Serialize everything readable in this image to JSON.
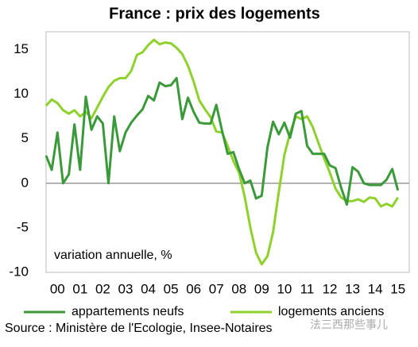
{
  "chart_data": {
    "type": "line",
    "title": "France : prix des logements",
    "annotation": "variation annuelle, %",
    "source": "Source : Ministère de l'Ecologie, Insee-Notaires",
    "watermark": "法三西那些事儿",
    "x": [
      0,
      0.25,
      0.5,
      0.75,
      1,
      1.25,
      1.5,
      1.75,
      2,
      2.25,
      2.5,
      2.75,
      3,
      3.25,
      3.5,
      3.75,
      4,
      4.25,
      4.5,
      4.75,
      5,
      5.25,
      5.5,
      5.75,
      6,
      6.25,
      6.5,
      6.75,
      7,
      7.25,
      7.5,
      7.75,
      8,
      8.25,
      8.5,
      8.75,
      9,
      9.25,
      9.5,
      9.75,
      10,
      10.25,
      10.5,
      10.75,
      11,
      11.25,
      11.5,
      11.75,
      12,
      12.25,
      12.5,
      12.75,
      13,
      13.25,
      13.5,
      13.75,
      14,
      14.25,
      14.5,
      14.75,
      15,
      15.25,
      15.5
    ],
    "series": [
      {
        "name": "appartements neufs",
        "color": "#3a9a3a",
        "values": [
          3.1,
          1.5,
          5.7,
          0,
          1.0,
          6.6,
          1.5,
          9.7,
          6.0,
          7.5,
          6.7,
          0,
          7.5,
          3.6,
          5.7,
          6.8,
          7.6,
          8.3,
          9.8,
          9.3,
          11.3,
          10.9,
          11.0,
          11.8,
          7.2,
          9.6,
          8.0,
          6.8,
          6.7,
          6.7,
          8.8,
          5.9,
          3.3,
          3.5,
          1.6,
          0,
          0.3,
          -1.7,
          -1.4,
          4.0,
          6.9,
          5.5,
          6.8,
          5.1,
          7.8,
          8.1,
          4.2,
          3.3,
          3.3,
          3.3,
          2.0,
          1.7,
          -0.5,
          -2.4,
          1.8,
          1.3,
          0,
          -0.2,
          -0.2,
          -0.2,
          0.4,
          1.6,
          -0.8
        ]
      },
      {
        "name": "logements anciens",
        "color": "#8fd12c",
        "values": [
          8.7,
          9.4,
          9.0,
          8.2,
          7.8,
          8.2,
          7.5,
          8.0,
          7.3,
          8.5,
          9.7,
          10.8,
          11.5,
          11.8,
          11.8,
          12.6,
          14.4,
          14.7,
          15.5,
          16.1,
          15.6,
          15.8,
          15.7,
          15.2,
          14.5,
          13.2,
          11.4,
          9.3,
          8.3,
          7.4,
          5.8,
          5.7,
          4.2,
          2.5,
          1.2,
          -1.5,
          -5.0,
          -7.8,
          -9.1,
          -8.2,
          -5.5,
          -1.0,
          3.2,
          5.6,
          7.5,
          7.2,
          7.5,
          6.3,
          4.5,
          2.8,
          1.2,
          -0.6,
          -1.6,
          -2.0,
          -2.0,
          -1.8,
          -2.1,
          -1.6,
          -1.7,
          -2.6,
          -2.3,
          -2.6,
          -1.6
        ]
      }
    ],
    "xlim": [
      0,
      16
    ],
    "xticks": [
      {
        "value": 0.5,
        "label": "00"
      },
      {
        "value": 1.5,
        "label": "01"
      },
      {
        "value": 2.5,
        "label": "02"
      },
      {
        "value": 3.5,
        "label": "03"
      },
      {
        "value": 4.5,
        "label": "04"
      },
      {
        "value": 5.5,
        "label": "05"
      },
      {
        "value": 6.5,
        "label": "06"
      },
      {
        "value": 7.5,
        "label": "07"
      },
      {
        "value": 8.5,
        "label": "08"
      },
      {
        "value": 9.5,
        "label": "09"
      },
      {
        "value": 10.5,
        "label": "10"
      },
      {
        "value": 11.5,
        "label": "11"
      },
      {
        "value": 12.5,
        "label": "12"
      },
      {
        "value": 13.5,
        "label": "13"
      },
      {
        "value": 14.5,
        "label": "14"
      },
      {
        "value": 15.5,
        "label": "15"
      }
    ],
    "ylim": [
      -10,
      17
    ],
    "yticks": [
      -10,
      -5,
      0,
      5,
      10,
      15
    ],
    "zero_line": true,
    "grid": false,
    "legend": "bottom"
  }
}
